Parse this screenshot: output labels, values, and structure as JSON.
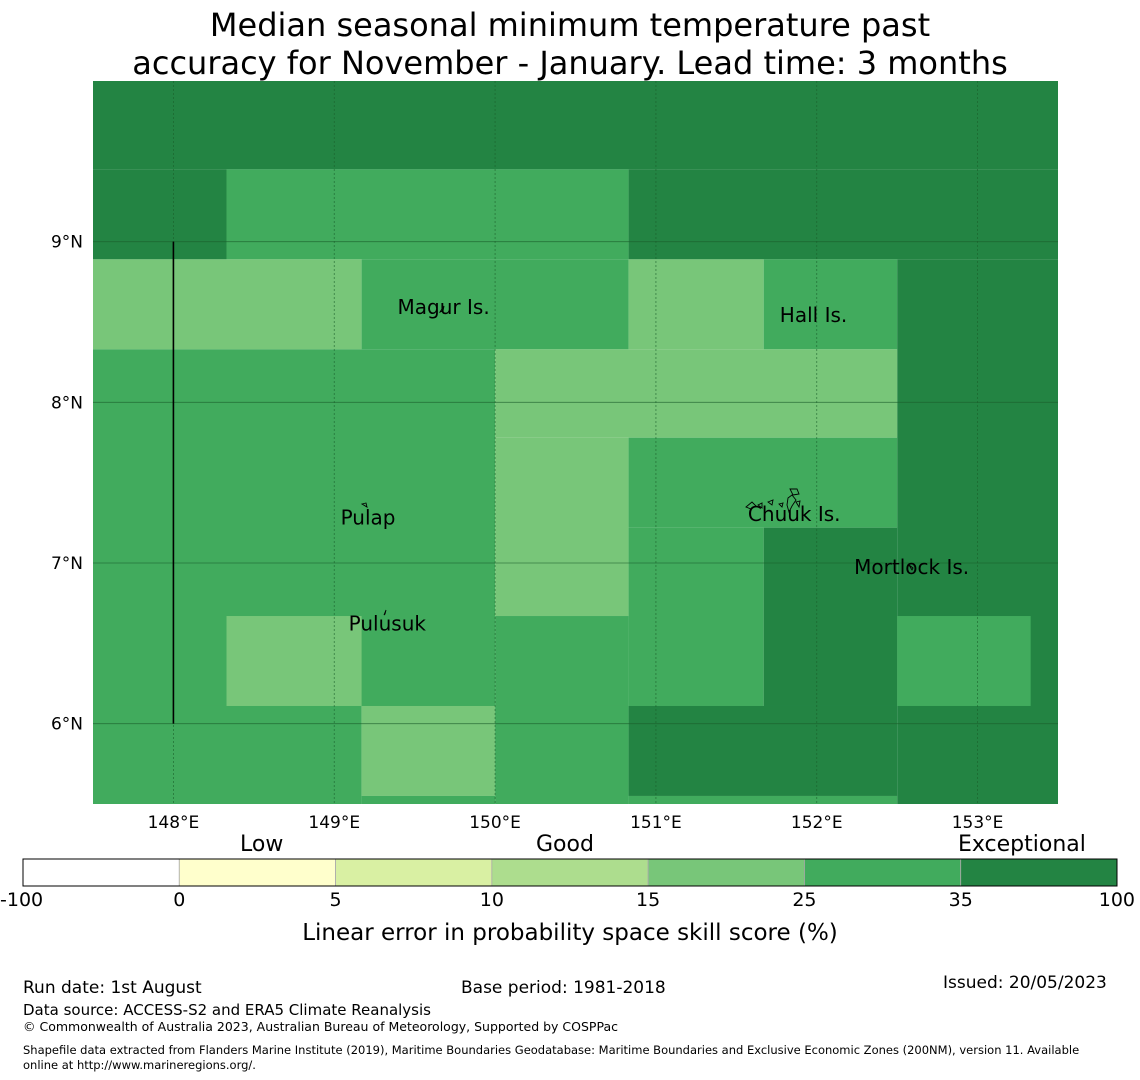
{
  "title": {
    "line1": "Median seasonal minimum temperature past",
    "line2": "accuracy for November - January. Lead time: 3 months"
  },
  "map": {
    "lon_range": [
      147.5,
      153.5
    ],
    "lat_range": [
      5.5,
      10.0
    ],
    "lon_ticks": [
      {
        "value": 148,
        "label": "148°E"
      },
      {
        "value": 149,
        "label": "149°E"
      },
      {
        "value": 150,
        "label": "150°E"
      },
      {
        "value": 151,
        "label": "151°E"
      },
      {
        "value": 152,
        "label": "152°E"
      },
      {
        "value": 153,
        "label": "153°E"
      }
    ],
    "lat_ticks": [
      {
        "value": 9,
        "label": "9°N"
      },
      {
        "value": 8,
        "label": "8°N"
      },
      {
        "value": 7,
        "label": "7°N"
      },
      {
        "value": 6,
        "label": "6°N"
      }
    ],
    "grid_color": "#1a5e2a",
    "cells": [
      {
        "lon0": 147.5,
        "lat0": 9.45,
        "lon1": 153.5,
        "lat1": 10.0,
        "color": "#238443"
      },
      {
        "lon0": 147.5,
        "lat0": 8.89,
        "lon1": 148.33,
        "lat1": 9.45,
        "color": "#238443"
      },
      {
        "lon0": 148.33,
        "lat0": 8.89,
        "lon1": 150.83,
        "lat1": 9.45,
        "color": "#41ab5d"
      },
      {
        "lon0": 150.83,
        "lat0": 8.89,
        "lon1": 153.5,
        "lat1": 9.45,
        "color": "#238443"
      },
      {
        "lon0": 147.5,
        "lat0": 8.33,
        "lon1": 149.17,
        "lat1": 8.89,
        "color": "#78c679"
      },
      {
        "lon0": 149.17,
        "lat0": 8.33,
        "lon1": 150.83,
        "lat1": 8.89,
        "color": "#41ab5d"
      },
      {
        "lon0": 150.83,
        "lat0": 8.33,
        "lon1": 151.67,
        "lat1": 8.89,
        "color": "#78c679"
      },
      {
        "lon0": 151.67,
        "lat0": 8.33,
        "lon1": 152.5,
        "lat1": 8.89,
        "color": "#41ab5d"
      },
      {
        "lon0": 152.5,
        "lat0": 5.5,
        "lon1": 153.5,
        "lat1": 8.89,
        "color": "#238443"
      },
      {
        "lon0": 147.5,
        "lat0": 6.11,
        "lon1": 150.0,
        "lat1": 8.33,
        "color": "#41ab5d"
      },
      {
        "lon0": 150.0,
        "lat0": 7.78,
        "lon1": 152.5,
        "lat1": 8.33,
        "color": "#78c679"
      },
      {
        "lon0": 150.0,
        "lat0": 6.67,
        "lon1": 150.83,
        "lat1": 7.78,
        "color": "#78c679"
      },
      {
        "lon0": 150.83,
        "lat0": 7.22,
        "lon1": 152.5,
        "lat1": 7.78,
        "color": "#41ab5d"
      },
      {
        "lon0": 150.83,
        "lat0": 6.11,
        "lon1": 151.67,
        "lat1": 7.22,
        "color": "#41ab5d"
      },
      {
        "lon0": 151.67,
        "lat0": 6.11,
        "lon1": 152.5,
        "lat1": 7.22,
        "color": "#238443"
      },
      {
        "lon0": 150.0,
        "lat0": 6.11,
        "lon1": 150.83,
        "lat1": 6.67,
        "color": "#41ab5d"
      },
      {
        "lon0": 148.33,
        "lat0": 6.11,
        "lon1": 149.17,
        "lat1": 6.67,
        "color": "#78c679"
      },
      {
        "lon0": 152.5,
        "lat0": 6.11,
        "lon1": 153.33,
        "lat1": 6.67,
        "color": "#41ab5d"
      },
      {
        "lon0": 147.5,
        "lat0": 5.5,
        "lon1": 149.17,
        "lat1": 6.11,
        "color": "#41ab5d"
      },
      {
        "lon0": 149.17,
        "lat0": 5.55,
        "lon1": 150.0,
        "lat1": 6.11,
        "color": "#78c679"
      },
      {
        "lon0": 149.17,
        "lat0": 5.5,
        "lon1": 150.0,
        "lat1": 5.55,
        "color": "#41ab5d"
      },
      {
        "lon0": 150.0,
        "lat0": 5.5,
        "lon1": 150.83,
        "lat1": 6.11,
        "color": "#41ab5d"
      },
      {
        "lon0": 150.83,
        "lat0": 5.55,
        "lon1": 152.5,
        "lat1": 6.11,
        "color": "#238443"
      },
      {
        "lon0": 150.83,
        "lat0": 5.5,
        "lon1": 152.5,
        "lat1": 5.55,
        "color": "#41ab5d"
      }
    ],
    "boundary_line": {
      "lon": 148.0,
      "lat_from": 6.0,
      "lat_to": 9.0
    },
    "places": [
      {
        "name": "Magur Is.",
        "lon": 149.68,
        "lat": 8.55
      },
      {
        "name": "Hall Is.",
        "lon": 151.98,
        "lat": 8.5
      },
      {
        "name": "Pulap",
        "lon": 149.21,
        "lat": 7.24
      },
      {
        "name": "Chuuk Is.",
        "lon": 151.86,
        "lat": 7.26
      },
      {
        "name": "Mortlock Is.",
        "lon": 152.59,
        "lat": 6.93
      },
      {
        "name": "Pulusuk",
        "lon": 149.33,
        "lat": 6.58
      }
    ]
  },
  "colorbar": {
    "categories": [
      "Low",
      "Good",
      "Exceptional"
    ],
    "ticks": [
      "-100",
      "0",
      "5",
      "10",
      "15",
      "25",
      "35",
      "100"
    ],
    "colors": [
      "#ffffff",
      "#ffffcc",
      "#d9f0a3",
      "#addd8e",
      "#78c679",
      "#41ab5d",
      "#238443"
    ],
    "label": "Linear error in probability space skill score (%)"
  },
  "footer": {
    "run_date": "Run date: 1st August",
    "base_period": "Base period: 1981-2018",
    "issued": "Issued: 20/05/2023",
    "data_source": "Data source: ACCESS-S2 and ERA5 Climate Reanalysis",
    "copyright": "© Commonwealth of Australia 2023, Australian Bureau of Meteorology, Supported by COSPPac",
    "shapefile_line1": "Shapefile data extracted from Flanders Marine Institute (2019), Maritime Boundaries Geodatabase: Maritime Boundaries and Exclusive Economic Zones (200NM), version 11. Available",
    "shapefile_line2": "online at http://www.marineregions.org/."
  }
}
